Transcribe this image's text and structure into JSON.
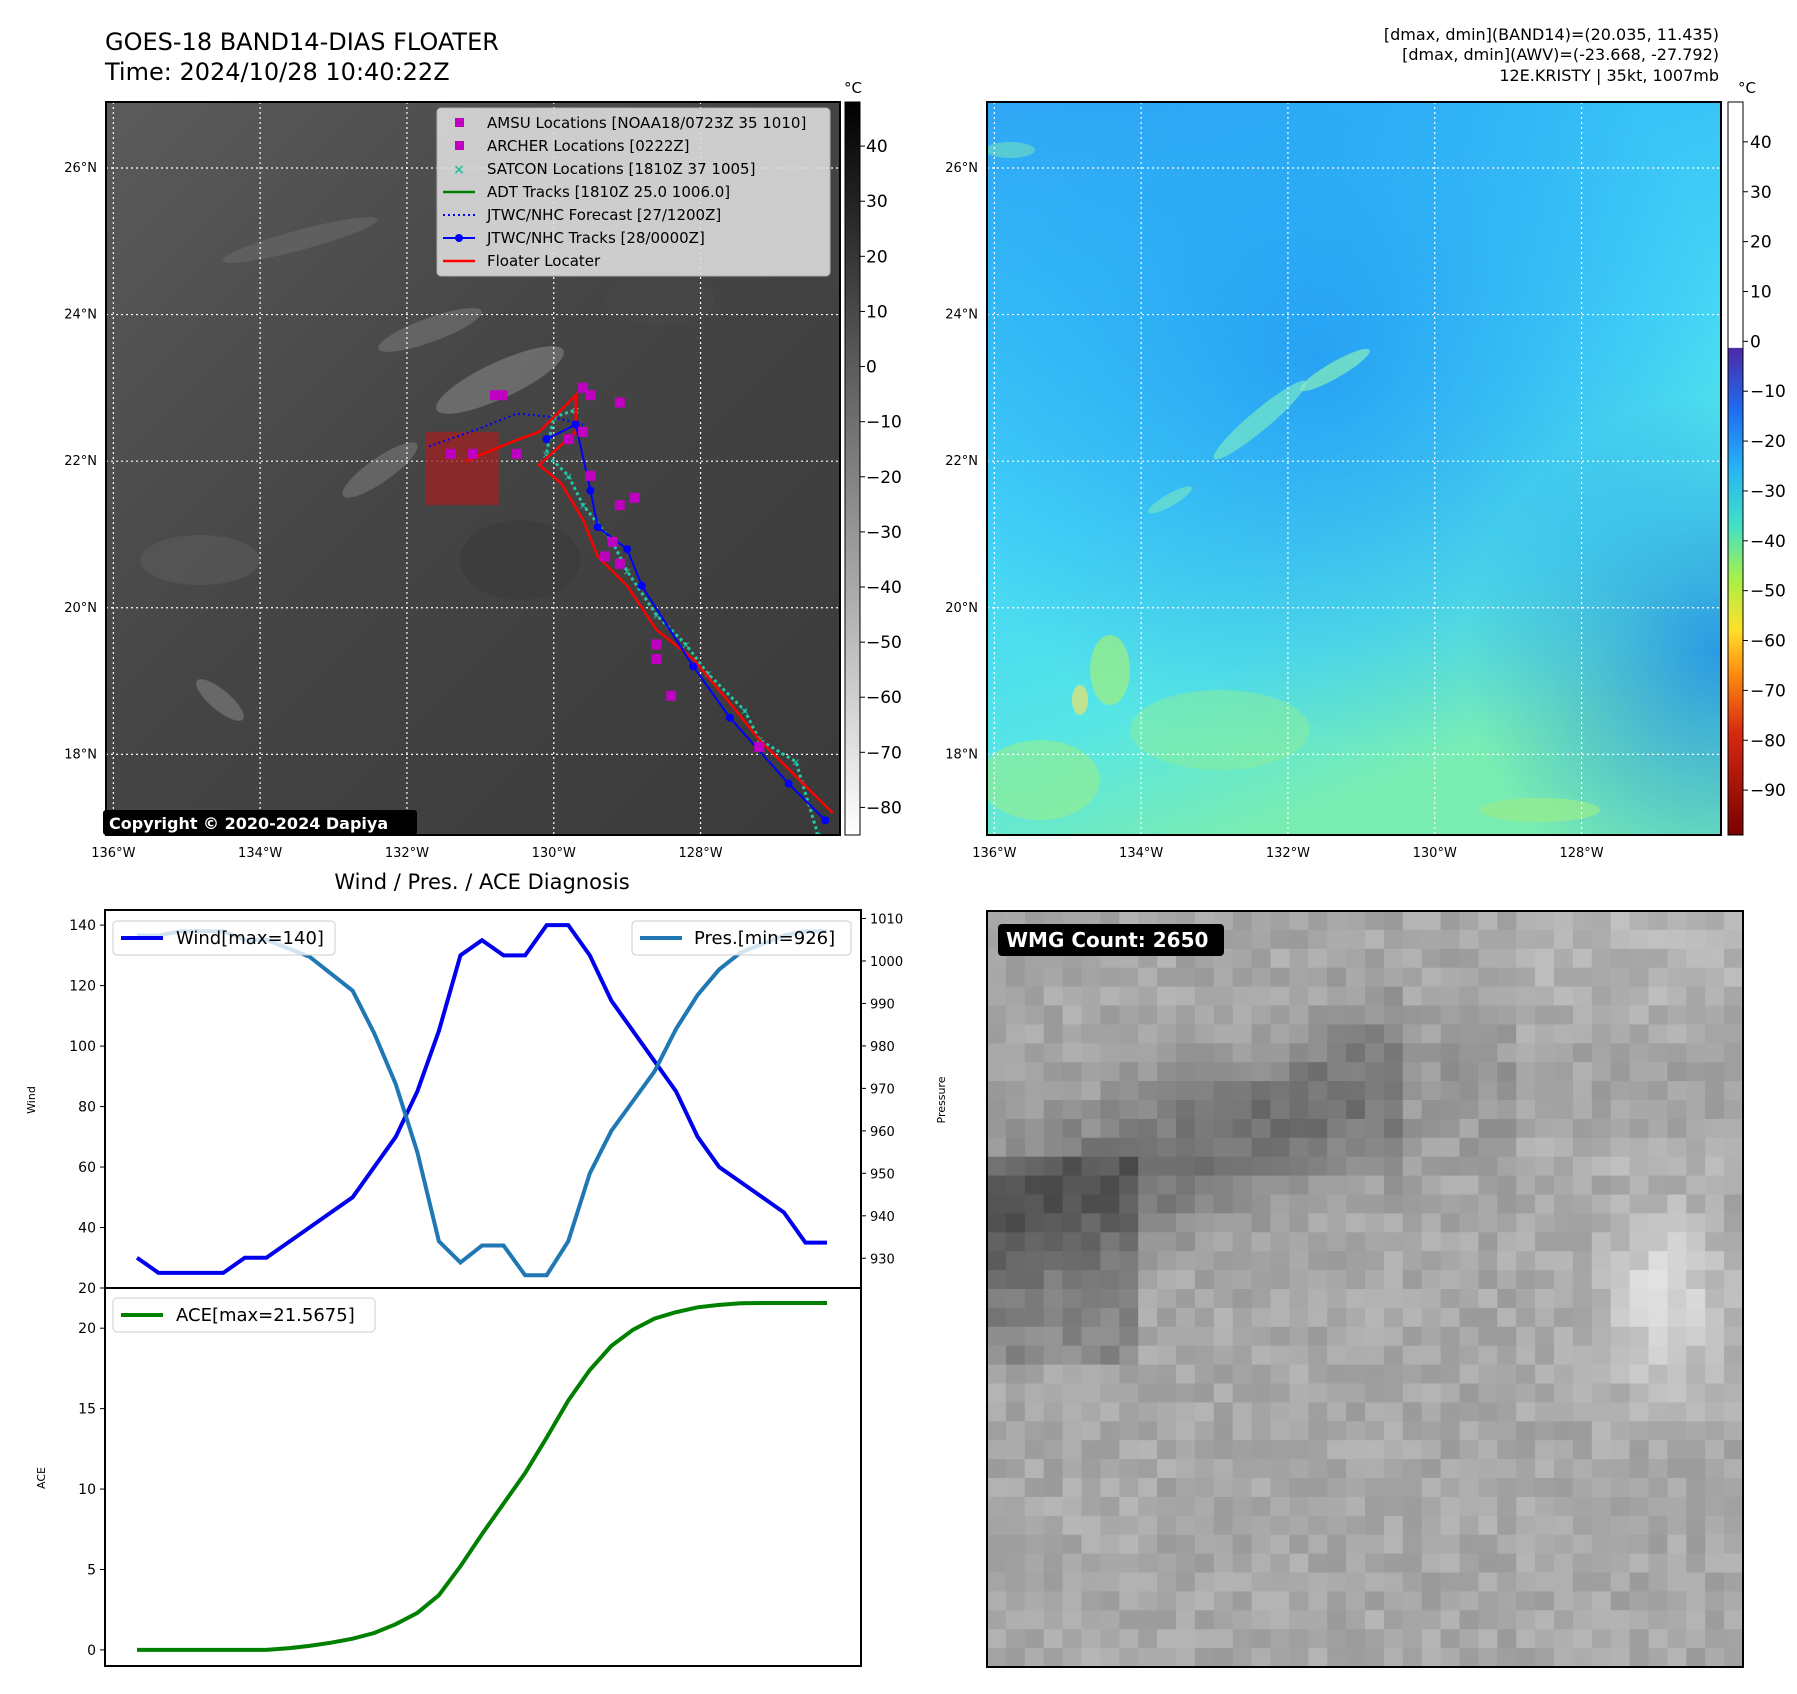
{
  "header": {
    "title_line1": "GOES-18 BAND14-DIAS FLOATER",
    "title_line2": "Time: 2024/10/28 10:40:22Z",
    "info_line1": "[dmax, dmin](BAND14)=(20.035, 11.435)",
    "info_line2": "[dmax, dmin](AWV)=(-23.668, -27.792)",
    "info_line3": "12E.KRISTY | 35kt, 1007mb"
  },
  "map": {
    "lon_ticks": [
      "136°W",
      "134°W",
      "132°W",
      "130°W",
      "128°W"
    ],
    "lat_ticks": [
      "26°N",
      "24°N",
      "22°N",
      "20°N",
      "18°N"
    ],
    "copyright": "Copyright © 2020-2024 Dapiya",
    "legend": [
      {
        "label": "AMSU Locations [NOAA18/0723Z 35 1010]",
        "color": "#c000c0",
        "marker": "square"
      },
      {
        "label": "ARCHER Locations [0222Z]",
        "color": "#c000c0",
        "marker": "square"
      },
      {
        "label": "SATCON Locations [1810Z 37 1005]",
        "color": "#20c0a0",
        "marker": "x"
      },
      {
        "label": "ADT Tracks [1810Z 25.0 1006.0]",
        "color": "#008000",
        "marker": "line"
      },
      {
        "label": "JTWC/NHC Forecast [27/1200Z]",
        "color": "#0000ff",
        "marker": "dotted"
      },
      {
        "label": "JTWC/NHC Tracks [28/0000Z]",
        "color": "#0000ff",
        "marker": "line-dot"
      },
      {
        "label": "Floater Locater",
        "color": "#ff0000",
        "marker": "line"
      }
    ],
    "tracks": {
      "forecast": [
        [
          -131.7,
          22.2
        ],
        [
          -131.0,
          22.45
        ],
        [
          -130.5,
          22.65
        ],
        [
          -130.0,
          22.6
        ],
        [
          -129.6,
          22.5
        ]
      ],
      "best": [
        [
          -126.3,
          17.1
        ],
        [
          -126.8,
          17.6
        ],
        [
          -127.6,
          18.5
        ],
        [
          -128.1,
          19.2
        ],
        [
          -128.8,
          20.3
        ],
        [
          -129.0,
          20.8
        ],
        [
          -129.4,
          21.1
        ],
        [
          -129.5,
          21.6
        ],
        [
          -129.7,
          22.5
        ],
        [
          -130.1,
          22.3
        ]
      ],
      "floater": [
        [
          -126.2,
          17.2
        ],
        [
          -126.7,
          17.7
        ],
        [
          -127.2,
          18.2
        ],
        [
          -127.6,
          18.7
        ],
        [
          -128.1,
          19.3
        ],
        [
          -128.6,
          19.7
        ],
        [
          -129.0,
          20.3
        ],
        [
          -129.4,
          20.7
        ],
        [
          -129.6,
          21.2
        ],
        [
          -129.9,
          21.7
        ],
        [
          -130.2,
          21.95
        ],
        [
          -129.7,
          22.4
        ],
        [
          -129.7,
          22.9
        ],
        [
          -130.2,
          22.4
        ],
        [
          -130.6,
          22.25
        ],
        [
          -131.2,
          22.0
        ]
      ],
      "satcon": [
        [
          -126.4,
          16.9
        ],
        [
          -126.7,
          17.9
        ],
        [
          -127.2,
          18.2
        ],
        [
          -127.4,
          18.6
        ],
        [
          -127.9,
          19.1
        ],
        [
          -128.2,
          19.5
        ],
        [
          -128.6,
          19.9
        ],
        [
          -129.0,
          20.5
        ],
        [
          -129.2,
          20.9
        ],
        [
          -129.6,
          21.4
        ],
        [
          -129.8,
          21.8
        ],
        [
          -130.1,
          22.1
        ],
        [
          -130.0,
          22.6
        ],
        [
          -129.7,
          22.7
        ]
      ],
      "amsu": [
        [
          -130.8,
          22.9
        ],
        [
          -130.7,
          22.9
        ],
        [
          -129.6,
          23.0
        ],
        [
          -129.5,
          22.9
        ],
        [
          -129.1,
          22.8
        ],
        [
          -129.6,
          22.4
        ],
        [
          -129.8,
          22.3
        ],
        [
          -131.4,
          22.1
        ],
        [
          -131.1,
          22.1
        ],
        [
          -130.5,
          22.1
        ],
        [
          -129.5,
          21.8
        ],
        [
          -128.9,
          21.5
        ],
        [
          -129.1,
          21.4
        ],
        [
          -129.2,
          20.9
        ],
        [
          -129.3,
          20.7
        ],
        [
          -129.1,
          20.6
        ],
        [
          -128.6,
          19.5
        ],
        [
          -128.6,
          19.3
        ],
        [
          -128.4,
          18.8
        ],
        [
          -127.2,
          18.1
        ]
      ]
    },
    "colorbar_unit": "°C",
    "gray_colorbar_ticks": [
      "40",
      "30",
      "20",
      "10",
      "0",
      "−10",
      "−20",
      "−30",
      "−40",
      "−50",
      "−60",
      "−70",
      "−80"
    ],
    "awv_colorbar_ticks": [
      "40",
      "30",
      "20",
      "10",
      "0",
      "−10",
      "−20",
      "−30",
      "−40",
      "−50",
      "−60",
      "−70",
      "−80",
      "−90"
    ]
  },
  "diag": {
    "title": "Wind / Pres. / ACE Diagnosis",
    "wind_ylabel": "Wind",
    "pres_ylabel": "Pressure",
    "ace_ylabel": "ACE",
    "wind_ticks": [
      "140",
      "120",
      "100",
      "80",
      "60",
      "40",
      "20"
    ],
    "pres_ticks": [
      "1010",
      "1000",
      "990",
      "980",
      "970",
      "960",
      "950",
      "940",
      "930"
    ],
    "ace_ticks": [
      "20",
      "15",
      "10",
      "5",
      "0"
    ],
    "legend_wind": "Wind[max=140]",
    "legend_pres": "Pres.[min=926]",
    "legend_ace": "ACE[max=21.5675]"
  },
  "chart_data": [
    {
      "type": "line",
      "title": "Wind / Pres. / ACE Diagnosis",
      "ylabel": "Wind",
      "y2label": "Pressure",
      "ylim": [
        20,
        145
      ],
      "y2lim": [
        923,
        1012
      ],
      "series": [
        {
          "name": "Wind[max=140]",
          "color": "#0000ee",
          "axis": "left",
          "values": [
            30,
            25,
            25,
            25,
            25,
            30,
            30,
            35,
            40,
            45,
            50,
            60,
            70,
            85,
            105,
            130,
            135,
            130,
            130,
            140,
            140,
            130,
            115,
            105,
            95,
            85,
            70,
            60,
            55,
            50,
            45,
            35,
            35
          ]
        },
        {
          "name": "Pres.[min=926]",
          "color": "#1f77b4",
          "axis": "right",
          "values": [
            1006,
            1006,
            1007,
            1007,
            1007,
            1005,
            1005,
            1003,
            1001,
            997,
            993,
            983,
            971,
            955,
            934,
            929,
            933,
            933,
            926,
            926,
            934,
            950,
            960,
            967,
            974,
            984,
            992,
            998,
            1002,
            1004,
            1006,
            1007,
            1007
          ]
        }
      ]
    },
    {
      "type": "line",
      "ylabel": "ACE",
      "ylim": [
        -1,
        22.5
      ],
      "series": [
        {
          "name": "ACE[max=21.5675]",
          "color": "#008000",
          "values": [
            0,
            0,
            0,
            0,
            0,
            0,
            0,
            0.1,
            0.25,
            0.45,
            0.7,
            1.05,
            1.6,
            2.3,
            3.4,
            5.2,
            7.2,
            9.1,
            11.0,
            13.2,
            15.5,
            17.4,
            18.9,
            19.9,
            20.6,
            21.0,
            21.3,
            21.45,
            21.55,
            21.5675,
            21.5675,
            21.5675,
            21.5675
          ]
        }
      ]
    }
  ],
  "inset": {
    "wmg_label": "WMG Count: 2650"
  }
}
